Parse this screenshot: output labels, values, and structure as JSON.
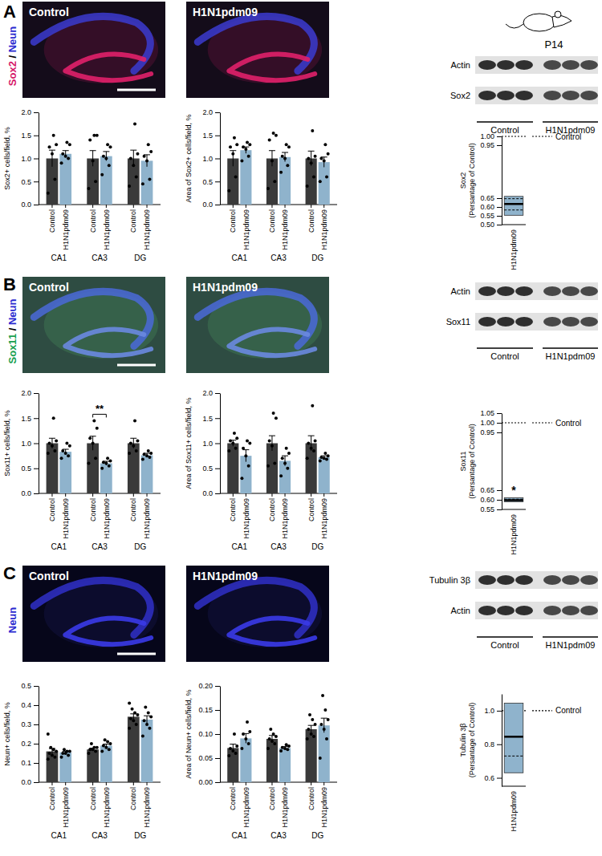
{
  "figure": {
    "age": "P14",
    "panels": [
      {
        "letter": "A",
        "stain": [
          {
            "text": "Sox2",
            "color": "#d6186a"
          },
          {
            "text": " / ",
            "color": "#000000"
          },
          {
            "text": "Neun",
            "color": "#2a2ad0"
          }
        ],
        "images": [
          "Control",
          "H1N1pdm09"
        ],
        "blot": {
          "rows": [
            "Actin",
            "Sox2"
          ],
          "groups": [
            "Control",
            "H1N1pdm09"
          ]
        }
      },
      {
        "letter": "B",
        "stain": [
          {
            "text": "Sox11",
            "color": "#18a050"
          },
          {
            "text": " / ",
            "color": "#000000"
          },
          {
            "text": "Neun",
            "color": "#2a2ad0"
          }
        ],
        "images": [
          "Control",
          "H1N1pdm09"
        ],
        "blot": {
          "rows": [
            "Actin",
            "Sox11"
          ],
          "groups": [
            "Control",
            "H1N1pdm09"
          ]
        }
      },
      {
        "letter": "C",
        "stain": [
          {
            "text": "Neun",
            "color": "#2a2ad0"
          }
        ],
        "images": [
          "Control",
          "H1N1pdm09"
        ],
        "blot": {
          "rows": [
            "Tubulin 3β",
            "Actin"
          ],
          "groups": [
            "Control",
            "H1N1pdm09"
          ]
        }
      }
    ]
  },
  "chart_data": [
    {
      "type": "bar",
      "ylabel": "Sox2+ cells/field, %",
      "categories": [
        "CA1",
        "CA3",
        "DG"
      ],
      "grid": false,
      "ylim": [
        0,
        2
      ],
      "yticks": [
        {
          "value": 0,
          "label": "0.0"
        },
        0.5,
        {
          "value": 1,
          "label": "1.0"
        },
        1.5,
        {
          "value": 2,
          "label": "2.0"
        }
      ],
      "series": [
        {
          "name": "Control",
          "color": "#3a3a3a",
          "values": [
            1,
            1,
            1
          ],
          "errors": [
            0.18,
            0.17,
            0.18
          ],
          "points": [
            [
              0.25,
              0.55,
              1.1,
              1.25,
              1.3,
              1.5
            ],
            [
              0.35,
              0.5,
              0.95,
              1.4,
              1.5,
              1.5
            ],
            [
              0.4,
              0.6,
              0.85,
              1.0,
              1.1,
              1.75
            ]
          ]
        },
        {
          "name": "H1N1pdm09",
          "color": "#8fb3cc",
          "values": [
            1.1,
            1.05,
            0.95
          ],
          "errors": [
            0.07,
            0.1,
            0.13
          ],
          "points": [
            [
              0.9,
              1.0,
              1.05,
              1.1,
              1.3,
              1.35
            ],
            [
              0.65,
              0.85,
              1.0,
              1.05,
              1.25,
              1.3
            ],
            [
              0.45,
              0.55,
              0.95,
              1.05,
              1.15,
              1.3
            ]
          ]
        }
      ]
    },
    {
      "type": "bar",
      "ylabel": "Area of Sox2+ cells/field, %",
      "categories": [
        "CA1",
        "CA3",
        "DG"
      ],
      "grid": false,
      "ylim": [
        0,
        2
      ],
      "yticks": [
        {
          "value": 0,
          "label": "0.0"
        },
        0.5,
        {
          "value": 1,
          "label": "1.0"
        },
        1.5,
        {
          "value": 2,
          "label": "2.0"
        }
      ],
      "series": [
        {
          "name": "Control",
          "color": "#3a3a3a",
          "values": [
            1,
            1,
            1
          ],
          "errors": [
            0.17,
            0.17,
            0.16
          ],
          "points": [
            [
              0.3,
              0.6,
              1.1,
              1.25,
              1.3,
              1.45
            ],
            [
              0.35,
              0.5,
              0.95,
              1.4,
              1.5,
              1.55
            ],
            [
              0.4,
              0.6,
              0.9,
              1.0,
              1.05,
              1.6
            ]
          ]
        },
        {
          "name": "H1N1pdm09",
          "color": "#8fb3cc",
          "values": [
            1.18,
            1.03,
            0.92
          ],
          "errors": [
            0.07,
            0.1,
            0.11
          ],
          "points": [
            [
              0.95,
              1.05,
              1.2,
              1.25,
              1.3,
              1.35
            ],
            [
              0.7,
              0.85,
              1.0,
              1.05,
              1.25,
              1.3
            ],
            [
              0.5,
              0.6,
              0.95,
              1.0,
              1.1,
              1.3
            ]
          ]
        }
      ]
    },
    {
      "type": "box",
      "ylabel": "Sox2 (Persantage of Control)",
      "categories": [
        "H1N1pdm09"
      ],
      "color": "#8fb3cc",
      "grid": false,
      "min": [
        0.553
      ],
      "max": [
        0.66
      ],
      "median": [
        0.617
      ],
      "dashed": [
        [
          0.583,
          0.647
        ]
      ],
      "ylim": [
        0.5,
        1
      ],
      "yticks": [
        {
          "value": 0.5,
          "label": "0.50"
        },
        0.55,
        {
          "value": 0.6,
          "label": "0.60"
        },
        0.65,
        0.95,
        {
          "value": 1,
          "label": "1.00"
        }
      ],
      "reference": {
        "value": 1,
        "label": "Control",
        "line_style": "dotted"
      },
      "legend": "right"
    },
    {
      "type": "bar",
      "ylabel": "Sox11+ cells/field, %",
      "categories": [
        "CA1",
        "CA3",
        "DG"
      ],
      "grid": false,
      "ylim": [
        0,
        2
      ],
      "yticks": [
        {
          "value": 0,
          "label": "0.0"
        },
        0.5,
        {
          "value": 1,
          "label": "1.0"
        },
        1.5,
        {
          "value": 2,
          "label": "2.0"
        }
      ],
      "annotations": [
        {
          "text": "**",
          "category": "CA3"
        }
      ],
      "series": [
        {
          "name": "Control",
          "color": "#3a3a3a",
          "values": [
            1,
            1,
            1
          ],
          "errors": [
            0.1,
            0.14,
            0.1
          ],
          "points": [
            [
              0.8,
              0.85,
              0.95,
              1.0,
              1.05,
              1.5
            ],
            [
              0.6,
              0.7,
              1.0,
              1.1,
              1.3,
              1.45
            ],
            [
              0.8,
              0.85,
              0.95,
              1.0,
              1.05,
              1.45
            ]
          ]
        },
        {
          "name": "H1N1pdm09",
          "color": "#8fb3cc",
          "values": [
            0.83,
            0.6,
            0.76
          ],
          "errors": [
            0.05,
            0.04,
            0.04
          ],
          "points": [
            [
              0.7,
              0.75,
              0.8,
              0.85,
              0.95,
              1.0
            ],
            [
              0.5,
              0.55,
              0.6,
              0.62,
              0.65,
              0.7
            ],
            [
              0.68,
              0.72,
              0.75,
              0.78,
              0.8,
              0.85
            ]
          ]
        }
      ]
    },
    {
      "type": "bar",
      "ylabel": "Area of Sox11+ cells/field, %",
      "categories": [
        "CA1",
        "CA3",
        "DG"
      ],
      "grid": false,
      "ylim": [
        0,
        2
      ],
      "yticks": [
        {
          "value": 0,
          "label": "0.0"
        },
        0.5,
        {
          "value": 1,
          "label": "1.0"
        },
        1.5,
        {
          "value": 2,
          "label": "2.0"
        }
      ],
      "series": [
        {
          "name": "Control",
          "color": "#3a3a3a",
          "values": [
            1,
            1,
            1
          ],
          "errors": [
            0.06,
            0.15,
            0.15
          ],
          "points": [
            [
              0.85,
              0.9,
              1.0,
              1.05,
              1.1,
              1.2
            ],
            [
              0.55,
              0.6,
              0.95,
              1.05,
              1.5,
              1.6
            ],
            [
              0.7,
              0.85,
              0.9,
              1.0,
              1.05,
              1.75
            ]
          ]
        },
        {
          "name": "H1N1pdm09",
          "color": "#8fb3cc",
          "values": [
            0.75,
            0.65,
            0.72
          ],
          "errors": [
            0.12,
            0.1,
            0.03
          ],
          "points": [
            [
              0.3,
              0.55,
              0.75,
              0.9,
              1.0,
              1.05
            ],
            [
              0.35,
              0.5,
              0.6,
              0.7,
              0.8,
              0.9
            ],
            [
              0.65,
              0.68,
              0.7,
              0.72,
              0.75,
              0.8
            ]
          ]
        }
      ]
    },
    {
      "type": "box",
      "ylabel": "Sox11 (Persantage of Control)",
      "categories": [
        "H1N1pdm09"
      ],
      "color": "#8fb3cc",
      "grid": false,
      "min": [
        0.59
      ],
      "max": [
        0.611
      ],
      "median": [
        0.598
      ],
      "dashed": [
        [
          0.603
        ]
      ],
      "ylim": [
        0.55,
        1.05
      ],
      "yticks": [
        0.55,
        {
          "value": 0.6,
          "label": "0.60"
        },
        0.65,
        0.95,
        {
          "value": 1,
          "label": "1.00"
        },
        1.05
      ],
      "annotations": [
        {
          "text": "*"
        }
      ],
      "reference": {
        "value": 1,
        "label": "Control",
        "line_style": "dotted"
      },
      "legend": "right"
    },
    {
      "type": "bar",
      "ylabel": "Neun+ cells/field, %",
      "categories": [
        "CA1",
        "CA3",
        "DG"
      ],
      "grid": false,
      "ylim": [
        0,
        0.5
      ],
      "yticks": [
        {
          "value": 0,
          "label": "0.0"
        },
        0.1,
        0.2,
        0.3,
        0.4,
        0.5
      ],
      "series": [
        {
          "name": "Control",
          "color": "#3a3a3a",
          "values": [
            0.16,
            0.17,
            0.34
          ],
          "errors": [
            0.015,
            0.007,
            0.015
          ],
          "points": [
            [
              0.12,
              0.13,
              0.14,
              0.15,
              0.16,
              0.17,
              0.18,
              0.25
            ],
            [
              0.15,
              0.16,
              0.17,
              0.17,
              0.18,
              0.18,
              0.2
            ],
            [
              0.28,
              0.3,
              0.32,
              0.33,
              0.35,
              0.36,
              0.38,
              0.41
            ]
          ]
        },
        {
          "name": "H1N1pdm09",
          "color": "#8fb3cc",
          "values": [
            0.155,
            0.19,
            0.325
          ],
          "errors": [
            0.005,
            0.008,
            0.02
          ],
          "points": [
            [
              0.13,
              0.14,
              0.15,
              0.15,
              0.16,
              0.16,
              0.17
            ],
            [
              0.16,
              0.17,
              0.18,
              0.19,
              0.2,
              0.21,
              0.22
            ],
            [
              0.24,
              0.28,
              0.3,
              0.32,
              0.34,
              0.36,
              0.39
            ]
          ]
        }
      ]
    },
    {
      "type": "bar",
      "ylabel": "Area of Neun+ cells/field, %",
      "categories": [
        "CA1",
        "CA3",
        "DG"
      ],
      "grid": false,
      "ylim": [
        0,
        0.2
      ],
      "yticks": [
        {
          "value": 0,
          "label": "0.00"
        },
        {
          "value": 0.05,
          "label": "0.05"
        },
        {
          "value": 0.1,
          "label": "0.10"
        },
        {
          "value": 0.15,
          "label": "0.15"
        },
        {
          "value": 0.2,
          "label": "0.20"
        }
      ],
      "series": [
        {
          "name": "Control",
          "color": "#3a3a3a",
          "values": [
            0.071,
            0.09,
            0.11
          ],
          "errors": [
            0.008,
            0.007,
            0.008
          ],
          "points": [
            [
              0.055,
              0.06,
              0.065,
              0.07,
              0.075,
              0.1
            ],
            [
              0.07,
              0.08,
              0.085,
              0.09,
              0.095,
              0.1,
              0.11
            ],
            [
              0.09,
              0.095,
              0.1,
              0.11,
              0.12,
              0.13,
              0.14
            ]
          ]
        },
        {
          "name": "H1N1pdm09",
          "color": "#8fb3cc",
          "values": [
            0.091,
            0.071,
            0.118
          ],
          "errors": [
            0.01,
            0.003,
            0.015
          ],
          "points": [
            [
              0.07,
              0.08,
              0.09,
              0.1,
              0.105,
              0.125
            ],
            [
              0.065,
              0.068,
              0.07,
              0.072,
              0.075,
              0.078
            ],
            [
              0.05,
              0.09,
              0.11,
              0.12,
              0.13,
              0.15,
              0.18
            ]
          ]
        }
      ]
    },
    {
      "type": "box",
      "ylabel": "Tubulin 3β (Persantage of Control)",
      "categories": [
        "H1N1pdm09"
      ],
      "color": "#8fb3cc",
      "grid": false,
      "min": [
        0.63
      ],
      "max": [
        1.045
      ],
      "median": [
        0.845
      ],
      "dashed": [
        [
          0.73
        ]
      ],
      "ylim": [
        0.55,
        1.1
      ],
      "yticks": [
        0.6,
        0.8,
        {
          "value": 1,
          "label": "1.0"
        }
      ],
      "reference": {
        "value": 1,
        "label": "Control",
        "line_style": "dotted"
      },
      "legend": "right"
    }
  ]
}
